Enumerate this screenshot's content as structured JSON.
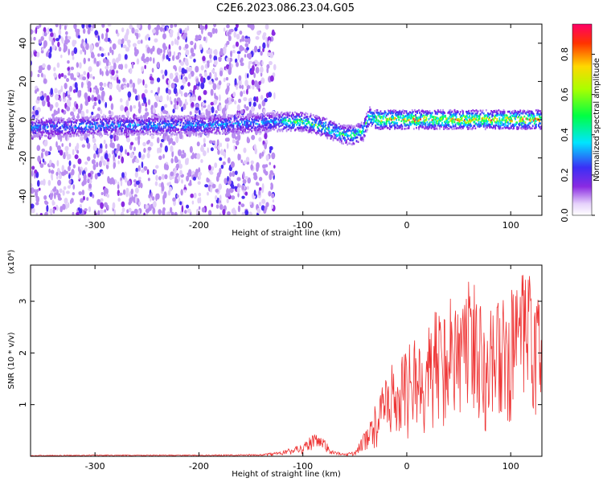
{
  "title": "C2E6.2023.086.23.04.G05",
  "chart_data": [
    {
      "type": "heatmap",
      "xlabel": "Height of straight line (km)",
      "ylabel": "Frequency (Hz)",
      "xlim": [
        -362,
        130
      ],
      "ylim": [
        -50,
        50
      ],
      "xticks": [
        -300,
        -200,
        -100,
        0,
        100
      ],
      "yticks": [
        -40,
        -20,
        0,
        20,
        40
      ],
      "grid": false,
      "ridge": {
        "x": [
          -362,
          -330,
          -300,
          -250,
          -200,
          -150,
          -120,
          -100,
          -85,
          -70,
          -60,
          -50,
          -42,
          -36,
          -30,
          -20,
          0,
          50,
          100,
          130
        ],
        "y": [
          -4,
          -4,
          -3,
          -3,
          -3,
          -2,
          -1,
          -1,
          -3,
          -6,
          -8,
          -8,
          -6,
          2,
          0,
          0,
          0,
          0,
          0,
          0
        ]
      },
      "colorbar": {
        "label": "Normalized spectral amplitude",
        "range": [
          0,
          0.95
        ],
        "ticks": [
          0.0,
          0.2,
          0.4,
          0.6,
          0.8
        ],
        "tick_labels": [
          "0.0",
          "0.2",
          "0.4",
          "0.6",
          "0.8"
        ]
      }
    },
    {
      "type": "line",
      "xlabel": "Height of straight line (km)",
      "ylabel": "SNR (10 * v/v)",
      "scale_label": "(x10⁴)",
      "xlim": [
        -362,
        130
      ],
      "ylim": [
        0,
        3.7
      ],
      "xticks": [
        -300,
        -200,
        -100,
        0,
        100
      ],
      "yticks": [
        1,
        2,
        3
      ],
      "grid": false,
      "series": [
        {
          "color": "#ee3333",
          "envelope_x": [
            -362,
            -300,
            -200,
            -140,
            -120,
            -100,
            -90,
            -80,
            -70,
            -60,
            -50,
            -45,
            -40,
            -35,
            -30,
            -25,
            -20,
            -10,
            0,
            10,
            20,
            30,
            40,
            50,
            60,
            70,
            80,
            90,
            100,
            110,
            120,
            130
          ],
          "envelope_y": [
            0.02,
            0.03,
            0.03,
            0.04,
            0.1,
            0.25,
            0.45,
            0.35,
            0.1,
            0.05,
            0.1,
            0.3,
            0.5,
            0.8,
            1.0,
            1.3,
            1.6,
            1.9,
            2.1,
            2.4,
            2.6,
            2.9,
            3.1,
            3.4,
            3.5,
            3.3,
            3.1,
            3.0,
            3.2,
            3.5,
            3.6,
            2.8
          ]
        }
      ]
    }
  ]
}
